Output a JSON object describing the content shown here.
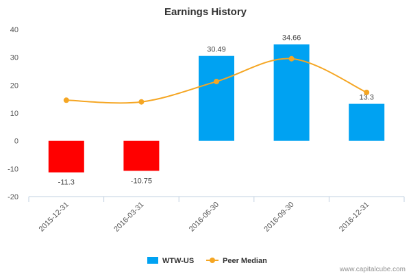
{
  "chart_data": {
    "type": "bar",
    "title": "Earnings History",
    "xlabel": "",
    "ylabel": "",
    "categories": [
      "2015-12-31",
      "2016-03-31",
      "2016-06-30",
      "2016-09-30",
      "2016-12-31"
    ],
    "ylim": [
      -20,
      40
    ],
    "yticks": [
      -20,
      -10,
      0,
      10,
      20,
      30,
      40
    ],
    "grid": false,
    "legend_position": "bottom-center",
    "series": [
      {
        "name": "WTW-US",
        "kind": "bar",
        "values": [
          -11.3,
          -10.75,
          30.49,
          34.66,
          13.3
        ],
        "data_labels": [
          "-11.3",
          "-10.75",
          "30.49",
          "34.66",
          "13.3"
        ],
        "color_positive": "#00A2F2",
        "color_negative": "#FF0000"
      },
      {
        "name": "Peer Median",
        "kind": "line",
        "values": [
          14.6,
          14.0,
          21.3,
          29.5,
          17.4
        ],
        "color": "#F5A623"
      }
    ]
  },
  "credit": "www.capitalcube.com"
}
